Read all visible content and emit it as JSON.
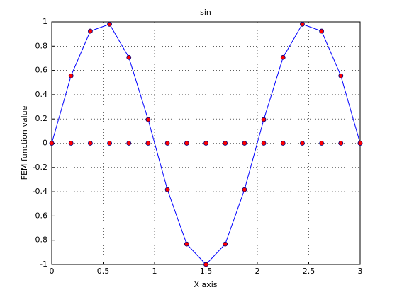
{
  "chart_data": {
    "type": "line",
    "title": "sin",
    "x_label": "X axis",
    "y_label": "FEM function value",
    "x": [
      0,
      0.1875,
      0.375,
      0.5625,
      0.75,
      0.9375,
      1.125,
      1.3125,
      1.5,
      1.6875,
      1.875,
      2.0625,
      2.25,
      2.4375,
      2.625,
      2.8125,
      3
    ],
    "series": [
      {
        "color": "#0000ff",
        "linestyle": "-",
        "marker_color": "#ff0000",
        "values": [
          0,
          0.5556,
          0.9239,
          0.9808,
          0.7071,
          0.1951,
          -0.3827,
          -0.8315,
          -1,
          -0.8315,
          -0.3827,
          0.1951,
          0.7071,
          0.9808,
          0.9239,
          0.5556,
          0
        ]
      },
      {
        "color": "#0000ff",
        "linestyle": "none",
        "marker_color": "#ff0000",
        "values": [
          0,
          0,
          0,
          0,
          0,
          0,
          0,
          0,
          0,
          0,
          0,
          0,
          0,
          0,
          0,
          0,
          0
        ]
      }
    ],
    "xlim": [
      0,
      3
    ],
    "xticks": [
      0,
      0.5,
      1,
      1.5,
      2,
      2.5,
      3
    ],
    "ylim": [
      -1,
      1
    ],
    "yticks": [
      -1,
      -0.8,
      -0.6,
      -0.4,
      -0.2,
      0,
      0.2,
      0.4,
      0.6,
      0.8,
      1
    ],
    "grid": true
  }
}
